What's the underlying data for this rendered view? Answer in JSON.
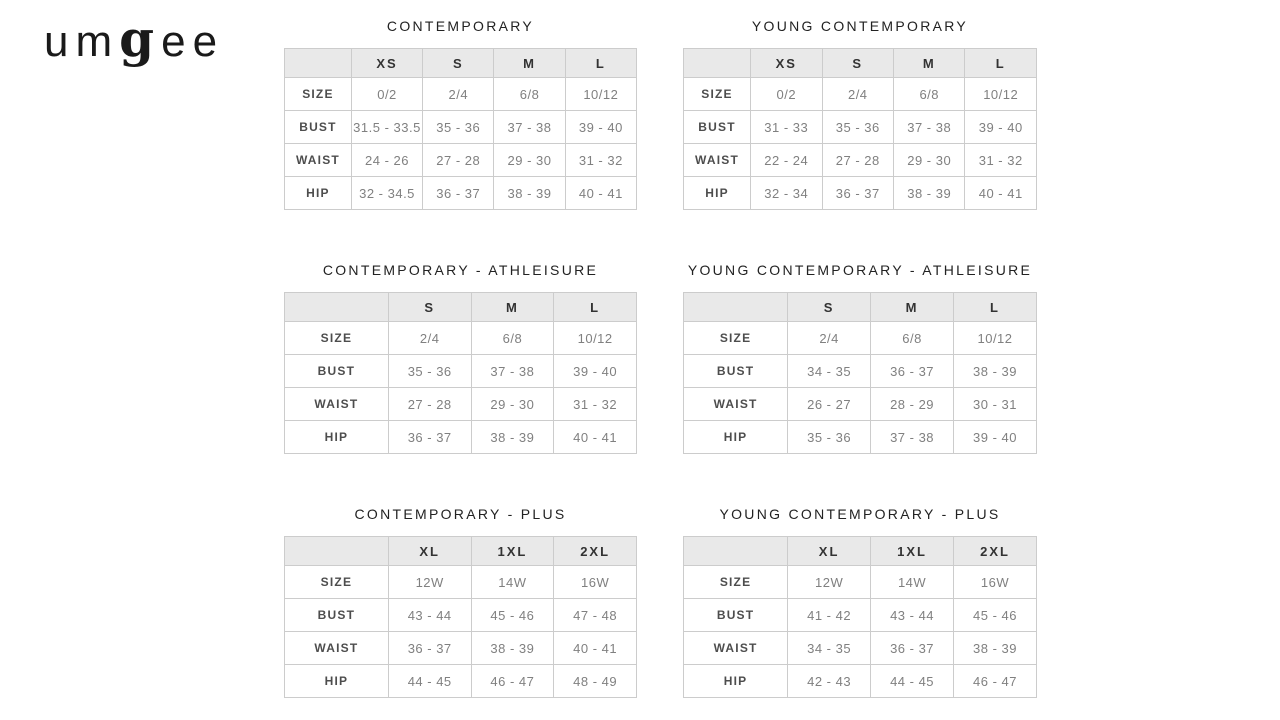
{
  "brand": {
    "logo_um": "um",
    "logo_g": "g",
    "logo_ee": "ee"
  },
  "tables": [
    {
      "title": "CONTEMPORARY",
      "columns": [
        "XS",
        "S",
        "M",
        "L"
      ],
      "rows": [
        {
          "label": "SIZE",
          "values": [
            "0/2",
            "2/4",
            "6/8",
            "10/12"
          ]
        },
        {
          "label": "BUST",
          "values": [
            "31.5 - 33.5",
            "35 - 36",
            "37 - 38",
            "39 - 40"
          ]
        },
        {
          "label": "WAIST",
          "values": [
            "24 - 26",
            "27 - 28",
            "29 - 30",
            "31 - 32"
          ]
        },
        {
          "label": "HIP",
          "values": [
            "32 - 34.5",
            "36 - 37",
            "38 - 39",
            "40 - 41"
          ]
        }
      ]
    },
    {
      "title": "YOUNG CONTEMPORARY",
      "columns": [
        "XS",
        "S",
        "M",
        "L"
      ],
      "rows": [
        {
          "label": "SIZE",
          "values": [
            "0/2",
            "2/4",
            "6/8",
            "10/12"
          ]
        },
        {
          "label": "BUST",
          "values": [
            "31 - 33",
            "35 - 36",
            "37 - 38",
            "39 - 40"
          ]
        },
        {
          "label": "WAIST",
          "values": [
            "22 - 24",
            "27 - 28",
            "29 - 30",
            "31 - 32"
          ]
        },
        {
          "label": "HIP",
          "values": [
            "32 - 34",
            "36 - 37",
            "38 - 39",
            "40 - 41"
          ]
        }
      ]
    },
    {
      "title": "CONTEMPORARY - ATHLEISURE",
      "columns": [
        "S",
        "M",
        "L"
      ],
      "rows": [
        {
          "label": "SIZE",
          "values": [
            "2/4",
            "6/8",
            "10/12"
          ]
        },
        {
          "label": "BUST",
          "values": [
            "35 - 36",
            "37 - 38",
            "39 - 40"
          ]
        },
        {
          "label": "WAIST",
          "values": [
            "27 - 28",
            "29 - 30",
            "31 - 32"
          ]
        },
        {
          "label": "HIP",
          "values": [
            "36 - 37",
            "38 - 39",
            "40 - 41"
          ]
        }
      ]
    },
    {
      "title": "YOUNG CONTEMPORARY - ATHLEISURE",
      "columns": [
        "S",
        "M",
        "L"
      ],
      "rows": [
        {
          "label": "SIZE",
          "values": [
            "2/4",
            "6/8",
            "10/12"
          ]
        },
        {
          "label": "BUST",
          "values": [
            "34 - 35",
            "36 - 37",
            "38 - 39"
          ]
        },
        {
          "label": "WAIST",
          "values": [
            "26 - 27",
            "28 - 29",
            "30 - 31"
          ]
        },
        {
          "label": "HIP",
          "values": [
            "35 - 36",
            "37 - 38",
            "39 - 40"
          ]
        }
      ]
    },
    {
      "title": "CONTEMPORARY - PLUS",
      "columns": [
        "XL",
        "1XL",
        "2XL"
      ],
      "rows": [
        {
          "label": "SIZE",
          "values": [
            "12W",
            "14W",
            "16W"
          ]
        },
        {
          "label": "BUST",
          "values": [
            "43 - 44",
            "45 - 46",
            "47 - 48"
          ]
        },
        {
          "label": "WAIST",
          "values": [
            "36 - 37",
            "38 - 39",
            "40 - 41"
          ]
        },
        {
          "label": "HIP",
          "values": [
            "44 - 45",
            "46 - 47",
            "48 - 49"
          ]
        }
      ]
    },
    {
      "title": "YOUNG CONTEMPORARY - PLUS",
      "columns": [
        "XL",
        "1XL",
        "2XL"
      ],
      "rows": [
        {
          "label": "SIZE",
          "values": [
            "12W",
            "14W",
            "16W"
          ]
        },
        {
          "label": "BUST",
          "values": [
            "41 - 42",
            "43 - 44",
            "45 - 46"
          ]
        },
        {
          "label": "WAIST",
          "values": [
            "34 - 35",
            "36 - 37",
            "38 - 39"
          ]
        },
        {
          "label": "HIP",
          "values": [
            "42 - 43",
            "44 - 45",
            "46 - 47"
          ]
        }
      ]
    }
  ],
  "colors": {
    "page_bg": "#ffffff",
    "header_bg": "#e9e9e9",
    "border": "#cccccc",
    "title_text": "#222222",
    "header_text": "#333333",
    "label_text": "#4d4d4d",
    "value_text": "#808080",
    "logo_text": "#1a1a1a"
  }
}
